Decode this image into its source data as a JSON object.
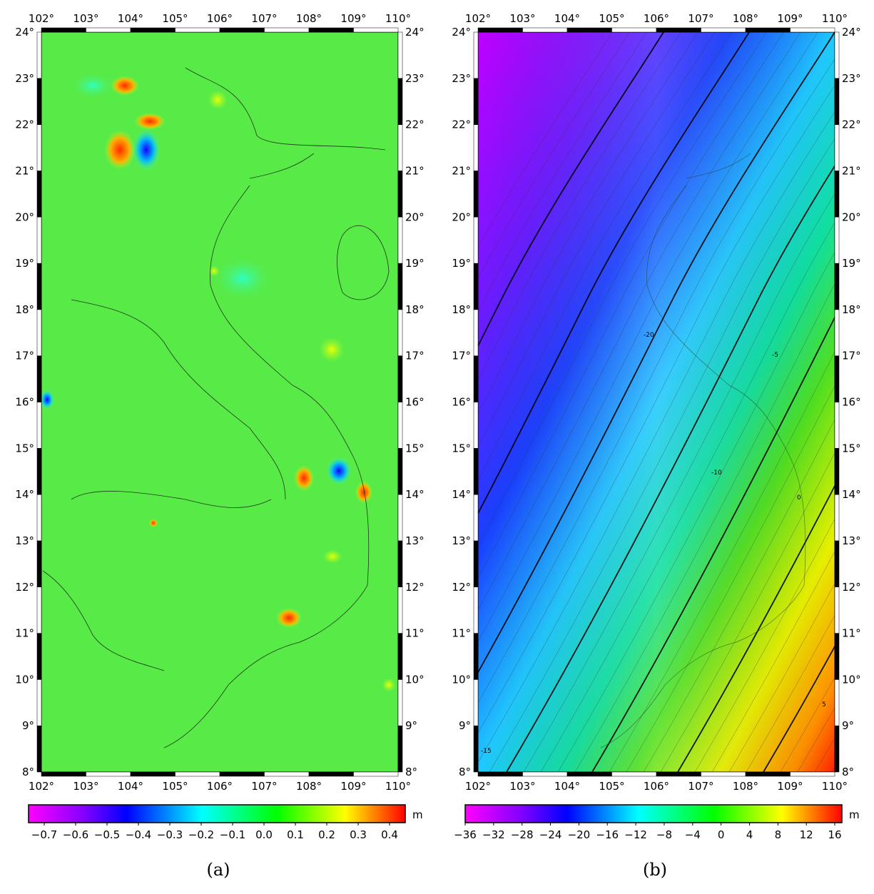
{
  "axes": {
    "lon_ticks": [
      "102°",
      "103°",
      "104°",
      "105°",
      "106°",
      "107°",
      "108°",
      "109°",
      "110°"
    ],
    "lat_ticks": [
      "8°",
      "9°",
      "10°",
      "11°",
      "12°",
      "13°",
      "14°",
      "15°",
      "16°",
      "17°",
      "18°",
      "19°",
      "20°",
      "21°",
      "22°",
      "23°",
      "24°"
    ],
    "lon_range": [
      102,
      110
    ],
    "lat_range": [
      8,
      24
    ]
  },
  "panels": [
    {
      "id": "a",
      "caption": "(a)",
      "colorbar": {
        "unit": "m",
        "range": [
          -0.75,
          0.45
        ],
        "tick_labels": [
          "−0.7",
          "−0.6",
          "−0.5",
          "−0.4",
          "−0.3",
          "−0.2",
          "−0.1",
          "0.0",
          "0.1",
          "0.2",
          "0.3",
          "0.4"
        ],
        "tick_values": [
          -0.7,
          -0.6,
          -0.5,
          -0.4,
          -0.3,
          -0.2,
          -0.1,
          0.0,
          0.1,
          0.2,
          0.3,
          0.4
        ]
      }
    },
    {
      "id": "b",
      "caption": "(b)",
      "colorbar": {
        "unit": "m",
        "range": [
          -36,
          17
        ],
        "tick_labels": [
          "−36",
          "−32",
          "−28",
          "−24",
          "−20",
          "−16",
          "−12",
          "−8",
          "−4",
          "0",
          "4",
          "8",
          "12",
          "16"
        ],
        "tick_values": [
          -36,
          -32,
          -28,
          -24,
          -20,
          -16,
          -12,
          -8,
          -4,
          0,
          4,
          8,
          12,
          16
        ]
      },
      "contour_labels": [
        "-20",
        "-10",
        "-15",
        "0",
        "-5",
        "5"
      ]
    }
  ],
  "colors": {
    "palette": [
      "#ff00ff",
      "#8000ff",
      "#0000ff",
      "#00ffff",
      "#00ff00",
      "#ffff00",
      "#ff0000"
    ],
    "background_a": "#55e645"
  }
}
